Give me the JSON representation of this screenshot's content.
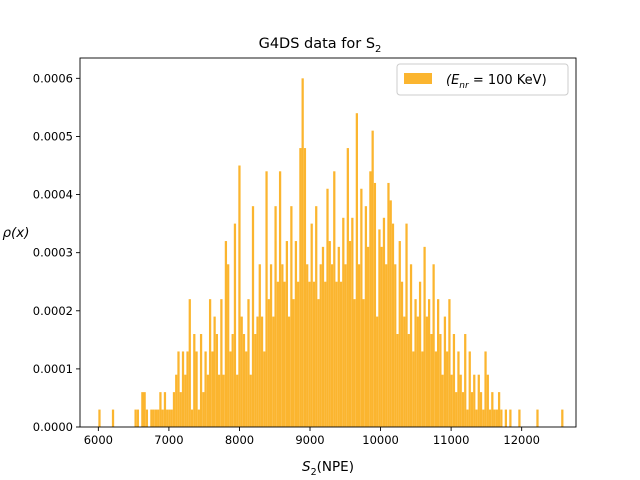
{
  "chart_data": {
    "type": "bar",
    "title": "G4DS data for S",
    "title_sub": "2",
    "xlabel": "S",
    "xlabel_sub": "2",
    "xlabel_unit": "(NPE)",
    "ylabel": "ρ(x)",
    "xlim": [
      5740,
      12770
    ],
    "ylim": [
      0.0,
      0.000635
    ],
    "xticks": [
      "6000",
      "7000",
      "8000",
      "9000",
      "10000",
      "11000",
      "12000"
    ],
    "xtick_values": [
      6000,
      7000,
      8000,
      9000,
      10000,
      11000,
      12000
    ],
    "yticks": [
      "0.0000",
      "0.0001",
      "0.0002",
      "0.0003",
      "0.0004",
      "0.0005",
      "0.0006"
    ],
    "ytick_values": [
      0.0,
      0.0001,
      0.0002,
      0.0003,
      0.0004,
      0.0005,
      0.0006
    ],
    "grid": false,
    "legend_position": "top-right",
    "color": "#fbb52f",
    "bin_width": 32,
    "series": [
      {
        "legend_prefix": "(E",
        "legend_sub": "nr",
        "legend_suffix": " = 100 KeV)",
        "bin_start": 6000,
        "values": [
          3e-05,
          0,
          0,
          0,
          0,
          0,
          3e-05,
          0,
          0,
          0,
          0,
          0,
          0,
          0,
          0,
          0,
          3e-05,
          3e-05,
          0,
          6e-05,
          6e-05,
          3e-05,
          0,
          3e-05,
          3e-05,
          3e-05,
          3e-05,
          6e-05,
          3e-05,
          6e-05,
          3e-05,
          3e-05,
          3e-05,
          6e-05,
          9e-05,
          0.00013,
          6e-05,
          0.00013,
          9e-05,
          0.00013,
          0.00022,
          3e-05,
          0.00016,
          0.00013,
          3e-05,
          0.00016,
          6e-05,
          0.00013,
          9e-05,
          0.00022,
          0.00013,
          0.00019,
          0.00016,
          9e-05,
          0.00022,
          9e-05,
          0.00019,
          0.00028,
          0.00013,
          0.00016,
          0.00035,
          9e-05,
          0.00045,
          0.00019,
          0.00016,
          0.00013,
          0.00022,
          9e-05,
          0.00038,
          0.00016,
          0.00019,
          0.00028,
          0.00019,
          0.00013,
          0.00044,
          0.00022,
          0.00028,
          0.00019,
          0.00038,
          0.00025,
          0.00044,
          0.00028,
          0.00025,
          0.00032,
          0.00019,
          0.00038,
          0.00022,
          0.00032,
          0.00025,
          0.00041,
          0.00022,
          0.00048,
          0.00028,
          0.00025,
          0.00035,
          0.00025,
          0.00038,
          0.00022,
          0.00028,
          0.00031,
          0.00025,
          0.00041,
          0.00032,
          0.00028,
          0.00044,
          0.00025,
          0.00031,
          0.00025,
          0.00036,
          0.00028,
          0.00048,
          0.00032,
          0.00036,
          0.00022,
          0.0005,
          0.00028,
          0.00041,
          0.00022,
          0.00038,
          0.00031,
          0.00044,
          0.00025,
          0.00042,
          0.00019,
          0.00034,
          0.00031,
          0.00036,
          0.00028,
          0.00019,
          0.00039,
          0.00035,
          0.00028,
          0.00016,
          0.00032,
          0.00025,
          0.00019,
          0.00035,
          0.00016,
          0.00028,
          0.00013,
          0.00022,
          0.00019,
          0.00025,
          0.00013,
          0.00031,
          0.00019,
          0.00022,
          0.00016,
          0.00028,
          0.00013,
          0.00022,
          0.00016,
          9e-05,
          0.00019,
          0.00013,
          0.00022,
          9e-05,
          0.00016,
          6e-05,
          0.00013,
          9e-05,
          6e-05,
          0.00016,
          3e-05,
          0.00013,
          6e-05,
          9e-05,
          3e-05,
          9e-05,
          6e-05,
          3e-05,
          0.00013,
          9e-05,
          3e-05,
          6e-05,
          3e-05,
          3e-05,
          6e-05,
          3e-05,
          0,
          3e-05,
          0,
          3e-05,
          0,
          0,
          0,
          3e-05,
          0,
          0,
          0,
          0,
          0,
          0,
          0,
          3e-05,
          0,
          0,
          0,
          0,
          0,
          0,
          0,
          0,
          0,
          0,
          3e-05
        ],
        "overrides": [
          {
            "x": 8864,
            "value": 0.0006
          },
          {
            "x": 8832,
            "value": 0.00048
          },
          {
            "x": 9632,
            "value": 0.00054
          },
          {
            "x": 9856,
            "value": 0.00051
          },
          {
            "x": 10080,
            "value": 0.00042
          },
          {
            "x": 7776,
            "value": 0.00032
          }
        ]
      }
    ]
  }
}
